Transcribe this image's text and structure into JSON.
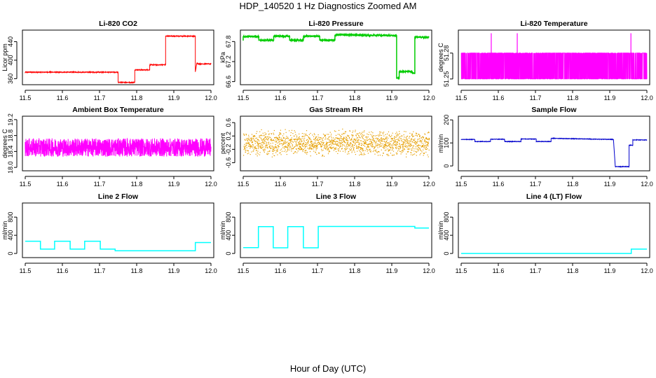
{
  "figure": {
    "title": "HDP_140520  1 Hz Diagnostics Zoomed AM",
    "xlabel": "Hour of Day (UTC)"
  },
  "chart_data": [
    {
      "type": "line",
      "title": "Li-820 CO2",
      "xlabel": "",
      "ylabel": "Licor ppm",
      "color": "#ff0000",
      "xlim": [
        11.5,
        12.0
      ],
      "ylim": [
        350,
        462
      ],
      "xticks": [
        "11.5",
        "11.6",
        "11.7",
        "11.8",
        "11.9",
        "12.0"
      ],
      "yticks": [
        {
          "value": 360,
          "label": "360"
        },
        {
          "value": 400,
          "label": "400"
        },
        {
          "value": 440,
          "label": "440"
        }
      ],
      "noise": 0.8,
      "series": [
        {
          "x": [
            11.5,
            11.75,
            11.75,
            11.795,
            11.795,
            11.835,
            11.835,
            11.878,
            11.878,
            11.958,
            11.958,
            11.962,
            11.965,
            12.0
          ],
          "y": [
            374,
            374,
            352,
            352,
            379,
            379,
            390,
            390,
            452,
            452,
            375,
            394,
            392,
            392
          ]
        }
      ]
    },
    {
      "type": "line",
      "title": "Li-820 Pressure",
      "xlabel": "",
      "ylabel": "kPa",
      "color": "#00cc00",
      "xlim": [
        11.5,
        12.0
      ],
      "ylim": [
        66.55,
        68.1
      ],
      "xticks": [
        "11.5",
        "11.6",
        "11.7",
        "11.8",
        "11.9",
        "12.0"
      ],
      "yticks": [
        {
          "value": 66.6,
          "label": "66.6"
        },
        {
          "value": 67.2,
          "label": "67.2"
        },
        {
          "value": 67.8,
          "label": "67.8"
        }
      ],
      "noise": 0.015,
      "series": [
        {
          "x": [
            11.5,
            11.5,
            11.542,
            11.542,
            11.582,
            11.582,
            11.625,
            11.625,
            11.662,
            11.662,
            11.706,
            11.706,
            11.747,
            11.747,
            11.913,
            11.913,
            11.92,
            11.92,
            11.955,
            11.955,
            11.962,
            11.962,
            12.0
          ],
          "y": [
            67.84,
            67.95,
            67.95,
            67.84,
            67.84,
            67.96,
            67.96,
            67.84,
            67.84,
            67.96,
            67.96,
            67.84,
            67.84,
            68.0,
            67.98,
            66.7,
            66.7,
            66.9,
            66.9,
            66.85,
            66.85,
            67.93,
            67.93
          ]
        }
      ]
    },
    {
      "type": "line",
      "title": "Li-820 Temperature",
      "xlabel": "",
      "ylabel": "degrees C",
      "color": "#ff00ff",
      "xlim": [
        11.5,
        12.0
      ],
      "ylim": [
        51.245,
        51.305
      ],
      "xticks": [
        "11.5",
        "11.6",
        "11.7",
        "11.8",
        "11.9",
        "12.0"
      ],
      "yticks": [
        {
          "value": 51.25,
          "label": "51.25"
        },
        {
          "value": 51.28,
          "label": "51.28"
        }
      ],
      "quantized": [
        51.25,
        51.28
      ],
      "spikes": [
        11.581,
        11.651,
        11.957
      ],
      "spike_value": 51.303,
      "series": [
        {
          "x": [
            11.5,
            12.0
          ],
          "y": [
            51.25,
            51.28
          ]
        }
      ]
    },
    {
      "type": "line",
      "title": "Ambient Box Temperature",
      "xlabel": "",
      "ylabel": "degrees C",
      "color": "#ff00ff",
      "xlim": [
        11.5,
        12.0
      ],
      "ylim": [
        17.95,
        19.25
      ],
      "xticks": [
        "11.5",
        "11.6",
        "11.7",
        "11.8",
        "11.9",
        "12.0"
      ],
      "yticks": [
        {
          "value": 18.0,
          "label": "18.0"
        },
        {
          "value": 18.4,
          "label": "18.4"
        },
        {
          "value": 18.8,
          "label": "18.8"
        },
        {
          "value": 19.2,
          "label": "19.2"
        }
      ],
      "noise": 0.23,
      "series": [
        {
          "x": [
            11.5,
            12.0
          ],
          "y": [
            18.5,
            18.5
          ]
        }
      ]
    },
    {
      "type": "scatter",
      "title": "Gas Stream RH",
      "xlabel": "",
      "ylabel": "percent",
      "color": "#e69f00",
      "xlim": [
        11.5,
        12.0
      ],
      "ylim": [
        -0.8,
        0.75
      ],
      "xticks": [
        "11.5",
        "11.6",
        "11.7",
        "11.8",
        "11.9",
        "12.0"
      ],
      "yticks": [
        {
          "value": -0.6,
          "label": "-0.6"
        },
        {
          "value": -0.2,
          "label": "-0.2"
        },
        {
          "value": 0.2,
          "label": "0.2"
        },
        {
          "value": 0.6,
          "label": "0.6"
        }
      ],
      "noise": 0.32,
      "series": [
        {
          "x": [
            11.5,
            12.0
          ],
          "y": [
            0.0,
            0.0
          ]
        }
      ]
    },
    {
      "type": "line",
      "title": "Sample Flow",
      "xlabel": "",
      "ylabel": "ml/min",
      "color": "#0000cc",
      "xlim": [
        11.5,
        12.0
      ],
      "ylim": [
        -15,
        210
      ],
      "xticks": [
        "11.5",
        "11.6",
        "11.7",
        "11.8",
        "11.9",
        "12.0"
      ],
      "yticks": [
        {
          "value": 0,
          "label": "0"
        },
        {
          "value": 100,
          "label": "100"
        },
        {
          "value": 200,
          "label": "200"
        }
      ],
      "noise": 1.0,
      "series": [
        {
          "x": [
            11.5,
            11.537,
            11.537,
            11.579,
            11.579,
            11.617,
            11.617,
            11.661,
            11.661,
            11.702,
            11.702,
            11.742,
            11.742,
            11.91,
            11.91,
            11.915,
            11.915,
            11.952,
            11.952,
            11.962,
            11.962,
            12.0
          ],
          "y": [
            115,
            115,
            106,
            106,
            116,
            116,
            106,
            106,
            117,
            117,
            106,
            106,
            120,
            115,
            115,
            -3,
            -3,
            -3,
            90,
            90,
            113,
            113
          ]
        }
      ]
    },
    {
      "type": "line",
      "title": "Line 2 Flow",
      "xlabel": "",
      "ylabel": "ml/min",
      "color": "#00ffff",
      "xlim": [
        11.5,
        12.0
      ],
      "ylim": [
        -60,
        1080
      ],
      "xticks": [
        "11.5",
        "11.6",
        "11.7",
        "11.8",
        "11.9",
        "12.0"
      ],
      "yticks": [
        {
          "value": 0,
          "label": "0"
        },
        {
          "value": 400,
          "label": "400"
        },
        {
          "value": 800,
          "label": "800"
        }
      ],
      "noise": 0,
      "series": [
        {
          "x": [
            11.5,
            11.541,
            11.541,
            11.579,
            11.579,
            11.621,
            11.621,
            11.66,
            11.66,
            11.702,
            11.702,
            11.742,
            11.742,
            11.958,
            11.958,
            12.0
          ],
          "y": [
            270,
            270,
            95,
            95,
            270,
            270,
            95,
            95,
            270,
            270,
            95,
            95,
            60,
            60,
            240,
            240
          ]
        }
      ]
    },
    {
      "type": "line",
      "title": "Line 3 Flow",
      "xlabel": "",
      "ylabel": "ml/min",
      "color": "#00ffff",
      "xlim": [
        11.5,
        12.0
      ],
      "ylim": [
        -60,
        1080
      ],
      "xticks": [
        "11.5",
        "11.6",
        "11.7",
        "11.8",
        "11.9",
        "12.0"
      ],
      "yticks": [
        {
          "value": 0,
          "label": "0"
        },
        {
          "value": 400,
          "label": "400"
        },
        {
          "value": 800,
          "label": "800"
        }
      ],
      "noise": 0,
      "series": [
        {
          "x": [
            11.5,
            11.541,
            11.541,
            11.581,
            11.581,
            11.62,
            11.62,
            11.662,
            11.662,
            11.702,
            11.702,
            11.962,
            11.962,
            12.0
          ],
          "y": [
            130,
            130,
            590,
            590,
            125,
            125,
            590,
            590,
            125,
            125,
            595,
            595,
            560,
            560
          ]
        }
      ]
    },
    {
      "type": "line",
      "title": "Line 4 (LT) Flow",
      "xlabel": "",
      "ylabel": "ml/min",
      "color": "#00ffff",
      "xlim": [
        11.5,
        12.0
      ],
      "ylim": [
        -60,
        1080
      ],
      "xticks": [
        "11.5",
        "11.6",
        "11.7",
        "11.8",
        "11.9",
        "12.0"
      ],
      "yticks": [
        {
          "value": 0,
          "label": "0"
        },
        {
          "value": 400,
          "label": "400"
        },
        {
          "value": 800,
          "label": "800"
        }
      ],
      "noise": 0,
      "series": [
        {
          "x": [
            11.5,
            11.958,
            11.958,
            12.0
          ],
          "y": [
            0,
            0,
            95,
            95
          ]
        }
      ]
    }
  ]
}
